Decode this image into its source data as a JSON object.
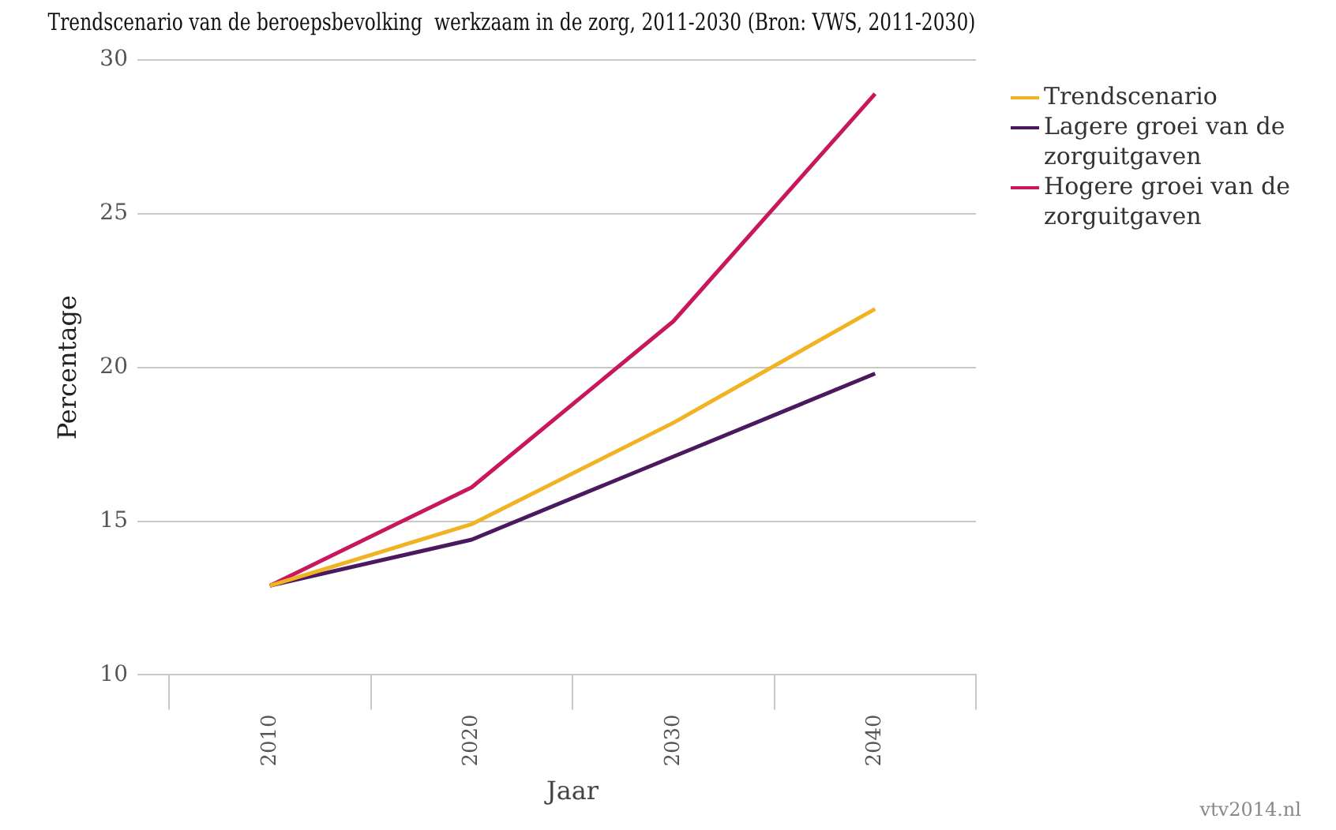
{
  "chart_data": {
    "type": "line",
    "title": "Trendscenario van de beroepsbevolking  werkzaam in de zorg, 2011-2030 (Bron: VWS, 2011-2030)",
    "xlabel": "Jaar",
    "ylabel": "Percentage",
    "categories": [
      "2010",
      "2020",
      "2030",
      "2040"
    ],
    "series": [
      {
        "name": "Trendscenario",
        "color": "#f0b323",
        "values": [
          12.9,
          14.9,
          18.2,
          21.9
        ]
      },
      {
        "name": "Lagere groei van de zorguitgaven",
        "color": "#4b1a5e",
        "values": [
          12.9,
          14.4,
          17.1,
          19.8
        ]
      },
      {
        "name": "Hogere groei van de zorguitgaven",
        "color": "#c8175d",
        "values": [
          12.9,
          16.1,
          21.5,
          28.9
        ]
      }
    ],
    "ylim": [
      10,
      30
    ],
    "yticks": [
      10,
      15,
      20,
      25,
      30
    ],
    "grid": "y",
    "legend": "top right",
    "marker": "none",
    "line_style": "solid",
    "annotations": [
      "vtv2014.nl"
    ]
  }
}
